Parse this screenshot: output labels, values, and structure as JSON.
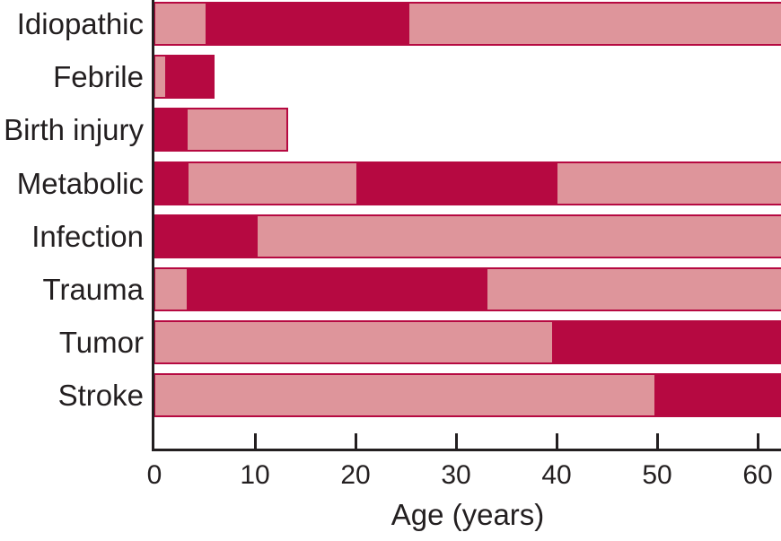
{
  "chart_data": {
    "type": "bar",
    "subtype": "horizontal-stacked-age-ranges",
    "title": "",
    "xlabel": "Age (years)",
    "ylabel": "",
    "xlim": [
      0,
      62.3
    ],
    "xticks": [
      0,
      10,
      20,
      30,
      40,
      50,
      60
    ],
    "grid": false,
    "legend_position": "none",
    "colors": {
      "dark_segment": "#b60941",
      "light_segment": "#de959b",
      "axis": "#231f20",
      "background": "#ffffff"
    },
    "categories": [
      "Idiopathic",
      "Febrile",
      "Birth injury",
      "Metabolic",
      "Infection",
      "Trauma",
      "Tumor",
      "Stroke"
    ],
    "bars": [
      {
        "category": "Idiopathic",
        "clipped_at_right": true,
        "segments": [
          {
            "from": 0,
            "to": 5,
            "shade": "light"
          },
          {
            "from": 5,
            "to": 25.3,
            "shade": "dark"
          },
          {
            "from": 25.3,
            "to": 62.3,
            "shade": "light"
          }
        ]
      },
      {
        "category": "Febrile",
        "clipped_at_right": false,
        "segments": [
          {
            "from": 0,
            "to": 1,
            "shade": "light"
          },
          {
            "from": 1,
            "to": 6,
            "shade": "dark"
          }
        ]
      },
      {
        "category": "Birth injury",
        "clipped_at_right": false,
        "segments": [
          {
            "from": 0,
            "to": 3.2,
            "shade": "dark"
          },
          {
            "from": 3.2,
            "to": 13.3,
            "shade": "light"
          }
        ]
      },
      {
        "category": "Metabolic",
        "clipped_at_right": true,
        "segments": [
          {
            "from": 0,
            "to": 3.3,
            "shade": "dark"
          },
          {
            "from": 3.3,
            "to": 20,
            "shade": "light"
          },
          {
            "from": 20,
            "to": 40,
            "shade": "dark"
          },
          {
            "from": 40,
            "to": 62.3,
            "shade": "light"
          }
        ]
      },
      {
        "category": "Infection",
        "clipped_at_right": true,
        "segments": [
          {
            "from": 0,
            "to": 10.2,
            "shade": "dark"
          },
          {
            "from": 10.2,
            "to": 62.3,
            "shade": "light"
          }
        ]
      },
      {
        "category": "Trauma",
        "clipped_at_right": true,
        "segments": [
          {
            "from": 0,
            "to": 3.1,
            "shade": "light"
          },
          {
            "from": 3.1,
            "to": 33,
            "shade": "dark"
          },
          {
            "from": 33,
            "to": 62.3,
            "shade": "light"
          }
        ]
      },
      {
        "category": "Tumor",
        "clipped_at_right": true,
        "segments": [
          {
            "from": 0,
            "to": 39.5,
            "shade": "light"
          },
          {
            "from": 39.5,
            "to": 62.3,
            "shade": "dark"
          }
        ]
      },
      {
        "category": "Stroke",
        "clipped_at_right": true,
        "segments": [
          {
            "from": 0,
            "to": 49.6,
            "shade": "light"
          },
          {
            "from": 49.6,
            "to": 62.3,
            "shade": "dark"
          }
        ]
      }
    ]
  }
}
